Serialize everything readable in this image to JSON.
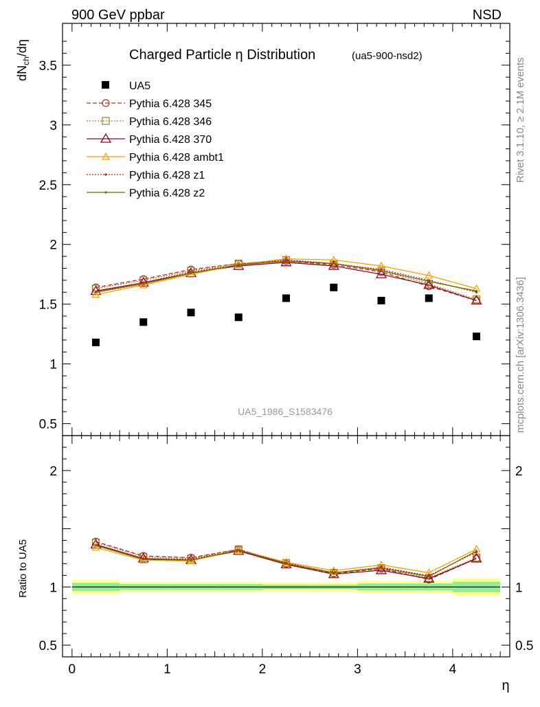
{
  "header": {
    "left": "900 GeV ppbar",
    "right": "NSD"
  },
  "side": {
    "rivet": "Rivet 3.1.10, ≥ 2.1M events",
    "mcplots": "mcplots.cern.ch [arXiv:1306.3436]"
  },
  "chart_data": {
    "type": "line",
    "title": "Charged Particle η Distribution",
    "subtitle": "(ua5-900-nsd2)",
    "watermark": "UA5_1986_S1583476",
    "xlabel": "η",
    "ylabel_main": "dN_ch/dη",
    "ylabel_ratio": "Ratio to UA5",
    "xlim": [
      -0.1,
      4.6
    ],
    "ylim_main": [
      0.4,
      3.85
    ],
    "ylim_ratio": [
      0.4,
      2.3
    ],
    "x_ticks": [
      0,
      1,
      2,
      3,
      4
    ],
    "y_ticks_main": [
      0.5,
      1,
      1.5,
      2,
      2.5,
      3,
      3.5
    ],
    "y_ticks_ratio": [
      0.5,
      1,
      2
    ],
    "x": [
      0.25,
      0.75,
      1.25,
      1.75,
      2.25,
      2.75,
      3.25,
      3.75,
      4.25
    ],
    "data": {
      "name": "UA5",
      "values": [
        1.18,
        1.35,
        1.43,
        1.39,
        1.55,
        1.64,
        1.53,
        1.55,
        1.23
      ],
      "bins": [
        0,
        0.5,
        1,
        1.5,
        2,
        2.5,
        3,
        3.5,
        4,
        4.5
      ],
      "ratio_band_stat": [
        0.035,
        0.025,
        0.025,
        0.025,
        0.02,
        0.02,
        0.03,
        0.03,
        0.045
      ],
      "ratio_band_total": [
        0.06,
        0.045,
        0.045,
        0.045,
        0.04,
        0.04,
        0.05,
        0.05,
        0.075
      ]
    },
    "series": [
      {
        "name": "Pythia 6.428 345",
        "color": "#b03030",
        "dash": "6,3",
        "marker": "circle",
        "values": [
          1.64,
          1.71,
          1.79,
          1.84,
          1.86,
          1.83,
          1.77,
          1.65,
          1.53
        ]
      },
      {
        "name": "Pythia 6.428 346",
        "color": "#a07830",
        "dash": "2,2",
        "marker": "square",
        "values": [
          1.63,
          1.7,
          1.78,
          1.84,
          1.87,
          1.84,
          1.78,
          1.67,
          1.54
        ]
      },
      {
        "name": "Pythia 6.428 370",
        "color": "#8b0a1e",
        "dash": "",
        "marker": "triangle",
        "values": [
          1.61,
          1.68,
          1.76,
          1.82,
          1.85,
          1.82,
          1.75,
          1.66,
          1.53
        ]
      },
      {
        "name": "Pythia 6.428 ambt1",
        "color": "#f0a000",
        "dash": "",
        "marker": "triangle-small",
        "values": [
          1.58,
          1.66,
          1.75,
          1.83,
          1.88,
          1.87,
          1.82,
          1.74,
          1.63
        ]
      },
      {
        "name": "Pythia 6.428 z1",
        "color": "#cc1010",
        "dash": "2,2",
        "marker": "dot",
        "values": [
          1.6,
          1.68,
          1.77,
          1.83,
          1.87,
          1.84,
          1.79,
          1.7,
          1.6
        ]
      },
      {
        "name": "Pythia 6.428 z2",
        "color": "#6b6b00",
        "dash": "",
        "marker": "dot",
        "values": [
          1.6,
          1.67,
          1.76,
          1.83,
          1.86,
          1.84,
          1.78,
          1.69,
          1.61
        ]
      }
    ],
    "legend_position": "top-left",
    "grid": false
  }
}
